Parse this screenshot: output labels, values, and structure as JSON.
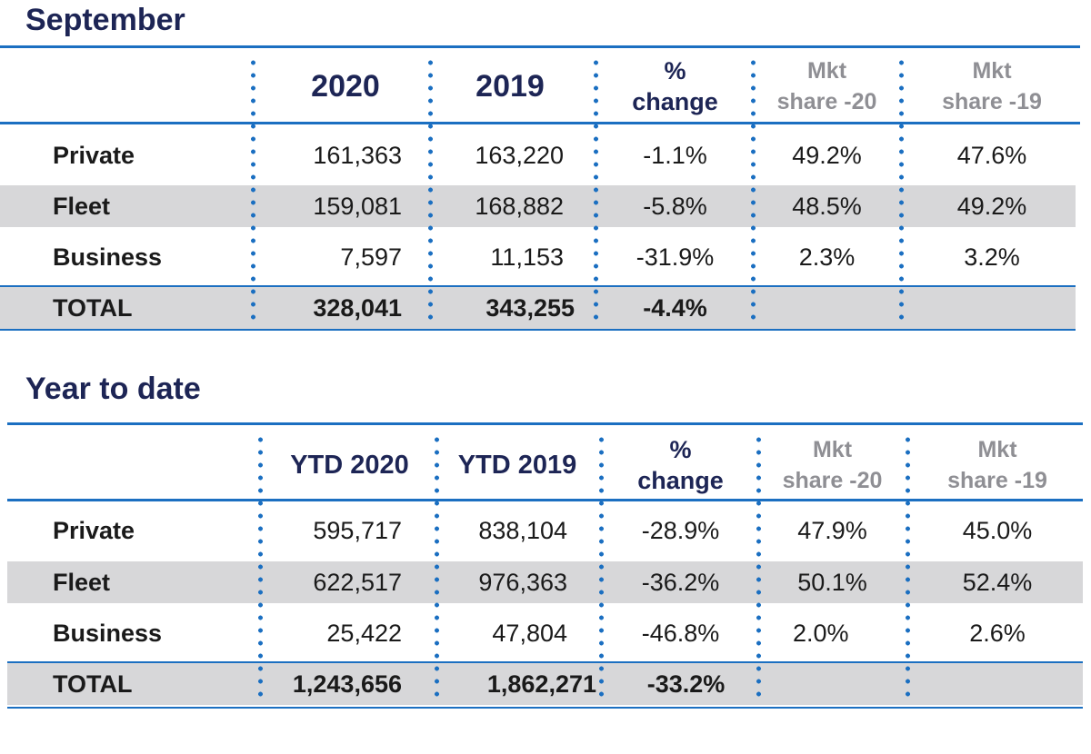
{
  "september": {
    "title": "September",
    "headers": {
      "col1": "2020",
      "col2": "2019",
      "pct_line1": "%",
      "pct_line2": "change",
      "mkt20_line1": "Mkt",
      "mkt20_line2": "share -20",
      "mkt19_line1": "Mkt",
      "mkt19_line2": "share -19"
    },
    "rows": [
      {
        "label": "Private",
        "v2020": "161,363",
        "v2019": "163,220",
        "change": "-1.1%",
        "share20": "49.2%",
        "share19": "47.6%"
      },
      {
        "label": "Fleet",
        "v2020": "159,081",
        "v2019": "168,882",
        "change": "-5.8%",
        "share20": "48.5%",
        "share19": "49.2%"
      },
      {
        "label": "Business",
        "v2020": "7,597",
        "v2019": "11,153",
        "change": "-31.9%",
        "share20": "2.3%",
        "share19": "3.2%"
      }
    ],
    "total": {
      "label": "TOTAL",
      "v2020": "328,041",
      "v2019": "343,255",
      "change": "-4.4%"
    }
  },
  "ytd": {
    "title": "Year to date",
    "headers": {
      "col1": "YTD 2020",
      "col2": "YTD 2019",
      "pct_line1": "%",
      "pct_line2": "change",
      "mkt20_line1": "Mkt",
      "mkt20_line2": "share -20",
      "mkt19_line1": "Mkt",
      "mkt19_line2": "share -19"
    },
    "rows": [
      {
        "label": "Private",
        "v2020": "595,717",
        "v2019": "838,104",
        "change": "-28.9%",
        "share20": "47.9%",
        "share19": "45.0%"
      },
      {
        "label": "Fleet",
        "v2020": "622,517",
        "v2019": "976,363",
        "change": "-36.2%",
        "share20": "50.1%",
        "share19": "52.4%"
      },
      {
        "label": "Business",
        "v2020": "25,422",
        "v2019": "47,804",
        "change": "-46.8%",
        "share20": "2.0%",
        "share19": "2.6%"
      }
    ],
    "total": {
      "label": "TOTAL",
      "v2020": "1,243,656",
      "v2019": "1,862,271",
      "change": "-33.2%"
    }
  },
  "colors": {
    "title_navy": "#1d2555",
    "rule_blue": "#1b6fc1",
    "row_shade": "#d7d7d9",
    "muted_header": "#8f8f94"
  }
}
